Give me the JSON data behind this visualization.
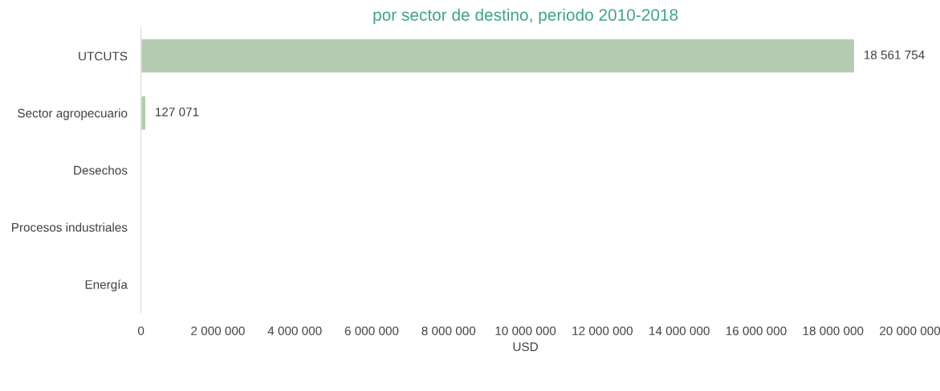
{
  "chart_data": {
    "type": "bar",
    "orientation": "horizontal",
    "title": "por sector de destino, periodo 2010-2018",
    "xlabel": "USD",
    "categories": [
      "UTCUTS",
      "Sector agropecuario",
      "Desechos",
      "Procesos industriales",
      "Energía"
    ],
    "values": [
      18561754,
      127071,
      null,
      null,
      null
    ],
    "value_labels": [
      "18 561 754",
      "127 071",
      null,
      null,
      null
    ],
    "color": "#b3cbae",
    "xlim": [
      0,
      20000000
    ],
    "xticks": [
      0,
      {
        "value": 2000000,
        "label": "2 000 000"
      },
      {
        "value": 4000000,
        "label": "4 000 000"
      },
      {
        "value": 6000000,
        "label": "6 000 000"
      },
      {
        "value": 8000000,
        "label": "8 000 000"
      },
      {
        "value": 10000000,
        "label": "10 000 000"
      },
      {
        "value": 12000000,
        "label": "12 000 000"
      },
      {
        "value": 14000000,
        "label": "14 000 000"
      },
      {
        "value": 16000000,
        "label": "16 000 000"
      },
      {
        "value": 18000000,
        "label": "18 000 000"
      },
      {
        "value": 20000000,
        "label": "20 000 000"
      }
    ],
    "grid": false,
    "legend": false
  }
}
